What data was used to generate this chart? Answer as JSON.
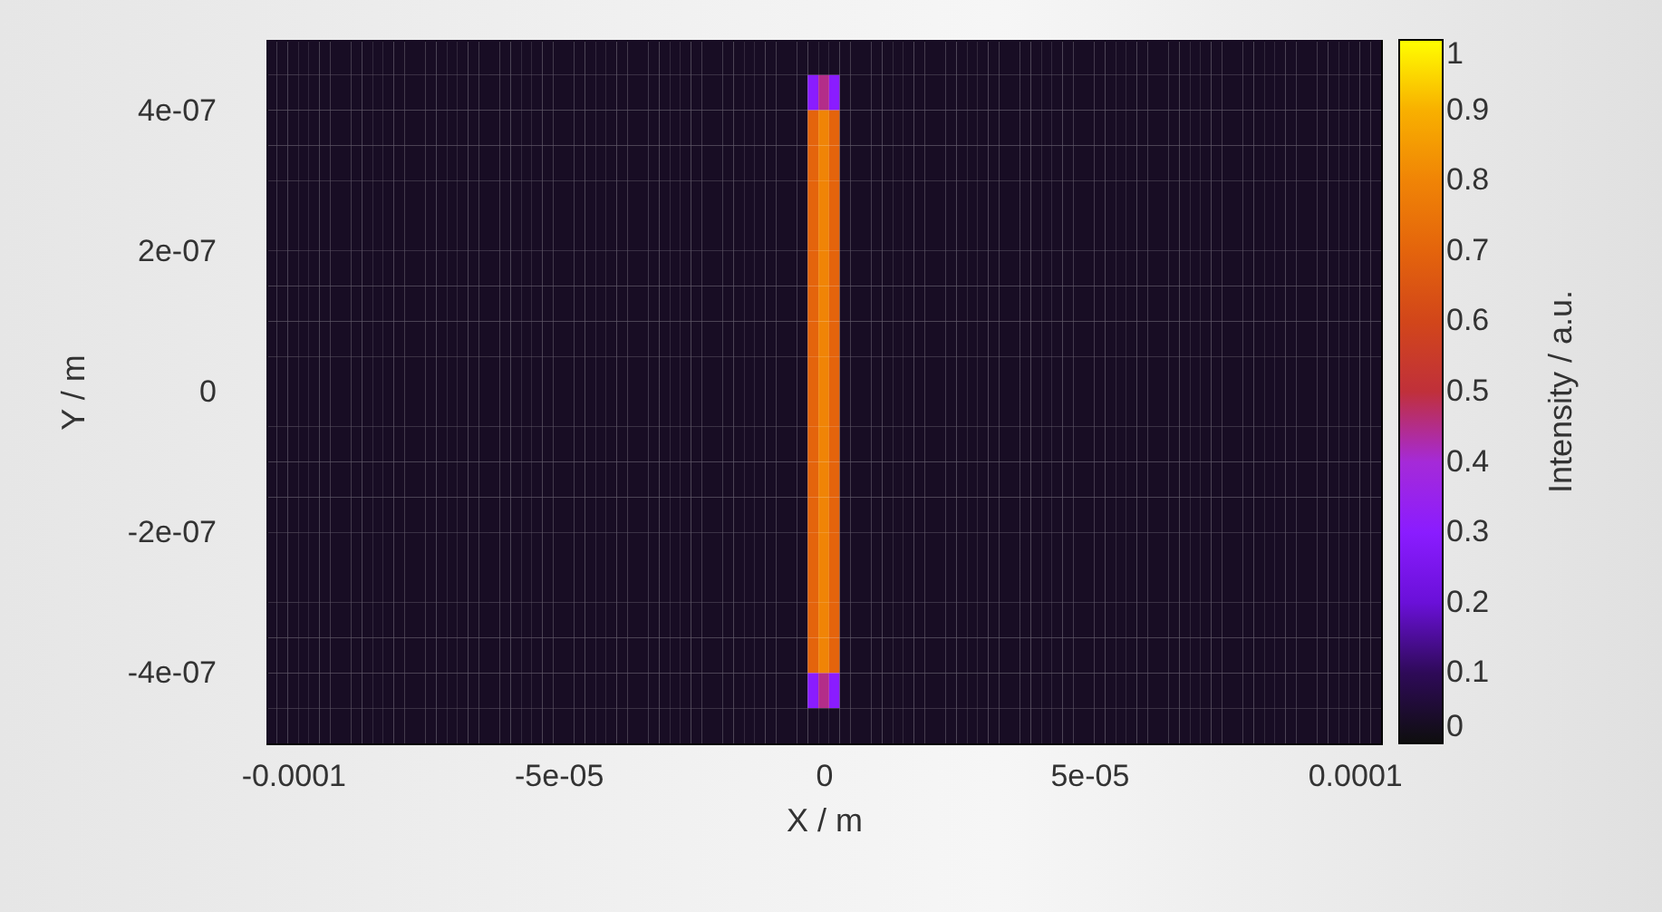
{
  "chart_data": {
    "type": "heatmap",
    "xlabel": "X / m",
    "ylabel": "Y / m",
    "clabel": "Intensity / a.u.",
    "xlim": [
      -0.000105,
      0.000105
    ],
    "ylim": [
      -5e-07,
      5e-07
    ],
    "xticks": [
      {
        "value": -0.0001,
        "label": "-0.0001"
      },
      {
        "value": -5e-05,
        "label": "-5e-05"
      },
      0,
      {
        "value": 5e-05,
        "label": "5e-05"
      },
      {
        "value": 0.0001,
        "label": "0.0001"
      }
    ],
    "yticks": [
      {
        "value": -4e-07,
        "label": "-4e-07"
      },
      {
        "value": -2e-07,
        "label": "-2e-07"
      },
      0,
      {
        "value": 2e-07,
        "label": "2e-07"
      },
      {
        "value": 4e-07,
        "label": "4e-07"
      }
    ],
    "clim": [
      0,
      1
    ],
    "cticks": [
      0,
      0.1,
      0.2,
      0.3,
      0.4,
      0.5,
      0.6,
      0.7,
      0.8,
      0.9,
      1
    ],
    "cells": [
      [
        0.03,
        0.03,
        0.03,
        0.03,
        0.03,
        0.03,
        0.03,
        0.03,
        0.03,
        0.03,
        0.03,
        0.03,
        0.03,
        0.03,
        0.03,
        0.03,
        0.03,
        0.03,
        0.03,
        0.03,
        0.03,
        0.03,
        0.03,
        0.03,
        0.03,
        0.03,
        0.03,
        0.03,
        0.03,
        0.03,
        0.03,
        0.03,
        0.03,
        0.03,
        0.03,
        0.03,
        0.03,
        0.03,
        0.03,
        0.03,
        0.03,
        0.03,
        0.03,
        0.03,
        0.03,
        0.03,
        0.03,
        0.03,
        0.03,
        0.03,
        0.03,
        0.03,
        0.03,
        0.03,
        0.03,
        0.03,
        0.03,
        0.03,
        0.03,
        0.03,
        0.03,
        0.03,
        0.03,
        0.03,
        0.03,
        0.03,
        0.03,
        0.03,
        0.03,
        0.03,
        0.03,
        0.03,
        0.03,
        0.03,
        0.03,
        0.03,
        0.03,
        0.03,
        0.03,
        0.03,
        0.03,
        0.03,
        0.03,
        0.03,
        0.03,
        0.03,
        0.03,
        0.03,
        0.03,
        0.03,
        0.03,
        0.03,
        0.03,
        0.03,
        0.03,
        0.03,
        0.03,
        0.03,
        0.03,
        0.03,
        0.03,
        0.03,
        0.03,
        0.03,
        0.03
      ],
      [
        0.03,
        0.03,
        0.03,
        0.03,
        0.03,
        0.03,
        0.03,
        0.03,
        0.03,
        0.03,
        0.03,
        0.03,
        0.03,
        0.03,
        0.03,
        0.03,
        0.03,
        0.03,
        0.03,
        0.03,
        0.03,
        0.03,
        0.03,
        0.03,
        0.03,
        0.03,
        0.03,
        0.03,
        0.03,
        0.03,
        0.03,
        0.03,
        0.03,
        0.03,
        0.03,
        0.03,
        0.03,
        0.03,
        0.03,
        0.03,
        0.03,
        0.03,
        0.03,
        0.03,
        0.03,
        0.03,
        0.03,
        0.03,
        0.03,
        0.03,
        0.03,
        0.3,
        0.45,
        0.3,
        0.03,
        0.03,
        0.03,
        0.03,
        0.03,
        0.03,
        0.03,
        0.03,
        0.03,
        0.03,
        0.03,
        0.03,
        0.03,
        0.03,
        0.03,
        0.03,
        0.03,
        0.03,
        0.03,
        0.03,
        0.03,
        0.03,
        0.03,
        0.03,
        0.03,
        0.03,
        0.03,
        0.03,
        0.03,
        0.03,
        0.03,
        0.03,
        0.03,
        0.03,
        0.03,
        0.03,
        0.03,
        0.03,
        0.03,
        0.03,
        0.03,
        0.03,
        0.03,
        0.03,
        0.03,
        0.03,
        0.03,
        0.03,
        0.03,
        0.03,
        0.03
      ],
      [
        0.03,
        0.03,
        0.03,
        0.03,
        0.03,
        0.03,
        0.03,
        0.03,
        0.03,
        0.03,
        0.03,
        0.03,
        0.03,
        0.03,
        0.03,
        0.03,
        0.03,
        0.03,
        0.03,
        0.03,
        0.03,
        0.03,
        0.03,
        0.03,
        0.03,
        0.03,
        0.03,
        0.03,
        0.03,
        0.03,
        0.03,
        0.03,
        0.03,
        0.03,
        0.03,
        0.03,
        0.03,
        0.03,
        0.03,
        0.03,
        0.03,
        0.03,
        0.03,
        0.03,
        0.03,
        0.03,
        0.03,
        0.03,
        0.03,
        0.03,
        0.03,
        0.7,
        0.8,
        0.7,
        0.03,
        0.03,
        0.03,
        0.03,
        0.03,
        0.03,
        0.03,
        0.03,
        0.03,
        0.03,
        0.03,
        0.03,
        0.03,
        0.03,
        0.03,
        0.03,
        0.03,
        0.03,
        0.03,
        0.03,
        0.03,
        0.03,
        0.03,
        0.03,
        0.03,
        0.03,
        0.03,
        0.03,
        0.03,
        0.03,
        0.03,
        0.03,
        0.03,
        0.03,
        0.03,
        0.03,
        0.03,
        0.03,
        0.03,
        0.03,
        0.03,
        0.03,
        0.03,
        0.03,
        0.03,
        0.03,
        0.03,
        0.03,
        0.03,
        0.03,
        0.03
      ],
      [
        0.03,
        0.03,
        0.03,
        0.03,
        0.03,
        0.03,
        0.03,
        0.03,
        0.03,
        0.03,
        0.03,
        0.03,
        0.03,
        0.03,
        0.03,
        0.03,
        0.03,
        0.03,
        0.03,
        0.03,
        0.03,
        0.03,
        0.03,
        0.03,
        0.03,
        0.03,
        0.03,
        0.03,
        0.03,
        0.03,
        0.03,
        0.03,
        0.03,
        0.03,
        0.03,
        0.03,
        0.03,
        0.03,
        0.03,
        0.03,
        0.03,
        0.03,
        0.03,
        0.03,
        0.03,
        0.03,
        0.03,
        0.03,
        0.03,
        0.03,
        0.03,
        0.7,
        0.8,
        0.7,
        0.03,
        0.03,
        0.03,
        0.03,
        0.03,
        0.03,
        0.03,
        0.03,
        0.03,
        0.03,
        0.03,
        0.03,
        0.03,
        0.03,
        0.03,
        0.03,
        0.03,
        0.03,
        0.03,
        0.03,
        0.03,
        0.03,
        0.03,
        0.03,
        0.03,
        0.03,
        0.03,
        0.03,
        0.03,
        0.03,
        0.03,
        0.03,
        0.03,
        0.03,
        0.03,
        0.03,
        0.03,
        0.03,
        0.03,
        0.03,
        0.03,
        0.03,
        0.03,
        0.03,
        0.03,
        0.03,
        0.03,
        0.03,
        0.03,
        0.03,
        0.03
      ],
      [
        0.03,
        0.03,
        0.03,
        0.03,
        0.03,
        0.03,
        0.03,
        0.03,
        0.03,
        0.03,
        0.03,
        0.03,
        0.03,
        0.03,
        0.03,
        0.03,
        0.03,
        0.03,
        0.03,
        0.03,
        0.03,
        0.03,
        0.03,
        0.03,
        0.03,
        0.03,
        0.03,
        0.03,
        0.03,
        0.03,
        0.03,
        0.03,
        0.03,
        0.03,
        0.03,
        0.03,
        0.03,
        0.03,
        0.03,
        0.03,
        0.03,
        0.03,
        0.03,
        0.03,
        0.03,
        0.03,
        0.03,
        0.03,
        0.03,
        0.03,
        0.03,
        0.7,
        0.8,
        0.7,
        0.03,
        0.03,
        0.03,
        0.03,
        0.03,
        0.03,
        0.03,
        0.03,
        0.03,
        0.03,
        0.03,
        0.03,
        0.03,
        0.03,
        0.03,
        0.03,
        0.03,
        0.03,
        0.03,
        0.03,
        0.03,
        0.03,
        0.03,
        0.03,
        0.03,
        0.03,
        0.03,
        0.03,
        0.03,
        0.03,
        0.03,
        0.03,
        0.03,
        0.03,
        0.03,
        0.03,
        0.03,
        0.03,
        0.03,
        0.03,
        0.03,
        0.03,
        0.03,
        0.03,
        0.03,
        0.03,
        0.03,
        0.03,
        0.03,
        0.03,
        0.03
      ],
      [
        0.03,
        0.03,
        0.03,
        0.03,
        0.03,
        0.03,
        0.03,
        0.03,
        0.03,
        0.03,
        0.03,
        0.03,
        0.03,
        0.03,
        0.03,
        0.03,
        0.03,
        0.03,
        0.03,
        0.03,
        0.03,
        0.03,
        0.03,
        0.03,
        0.03,
        0.03,
        0.03,
        0.03,
        0.03,
        0.03,
        0.03,
        0.03,
        0.03,
        0.03,
        0.03,
        0.03,
        0.03,
        0.03,
        0.03,
        0.03,
        0.03,
        0.03,
        0.03,
        0.03,
        0.03,
        0.03,
        0.03,
        0.03,
        0.03,
        0.03,
        0.03,
        0.7,
        0.8,
        0.7,
        0.03,
        0.03,
        0.03,
        0.03,
        0.03,
        0.03,
        0.03,
        0.03,
        0.03,
        0.03,
        0.03,
        0.03,
        0.03,
        0.03,
        0.03,
        0.03,
        0.03,
        0.03,
        0.03,
        0.03,
        0.03,
        0.03,
        0.03,
        0.03,
        0.03,
        0.03,
        0.03,
        0.03,
        0.03,
        0.03,
        0.03,
        0.03,
        0.03,
        0.03,
        0.03,
        0.03,
        0.03,
        0.03,
        0.03,
        0.03,
        0.03,
        0.03,
        0.03,
        0.03,
        0.03,
        0.03,
        0.03,
        0.03,
        0.03,
        0.03,
        0.03
      ],
      [
        0.03,
        0.03,
        0.03,
        0.03,
        0.03,
        0.03,
        0.03,
        0.03,
        0.03,
        0.03,
        0.03,
        0.03,
        0.03,
        0.03,
        0.03,
        0.03,
        0.03,
        0.03,
        0.03,
        0.03,
        0.03,
        0.03,
        0.03,
        0.03,
        0.03,
        0.03,
        0.03,
        0.03,
        0.03,
        0.03,
        0.03,
        0.03,
        0.03,
        0.03,
        0.03,
        0.03,
        0.03,
        0.03,
        0.03,
        0.03,
        0.03,
        0.03,
        0.03,
        0.03,
        0.03,
        0.03,
        0.03,
        0.03,
        0.03,
        0.03,
        0.03,
        0.7,
        0.8,
        0.7,
        0.03,
        0.03,
        0.03,
        0.03,
        0.03,
        0.03,
        0.03,
        0.03,
        0.03,
        0.03,
        0.03,
        0.03,
        0.03,
        0.03,
        0.03,
        0.03,
        0.03,
        0.03,
        0.03,
        0.03,
        0.03,
        0.03,
        0.03,
        0.03,
        0.03,
        0.03,
        0.03,
        0.03,
        0.03,
        0.03,
        0.03,
        0.03,
        0.03,
        0.03,
        0.03,
        0.03,
        0.03,
        0.03,
        0.03,
        0.03,
        0.03,
        0.03,
        0.03,
        0.03,
        0.03,
        0.03,
        0.03,
        0.03,
        0.03,
        0.03,
        0.03
      ],
      [
        0.03,
        0.03,
        0.03,
        0.03,
        0.03,
        0.03,
        0.03,
        0.03,
        0.03,
        0.03,
        0.03,
        0.03,
        0.03,
        0.03,
        0.03,
        0.03,
        0.03,
        0.03,
        0.03,
        0.03,
        0.03,
        0.03,
        0.03,
        0.03,
        0.03,
        0.03,
        0.03,
        0.03,
        0.03,
        0.03,
        0.03,
        0.03,
        0.03,
        0.03,
        0.03,
        0.03,
        0.03,
        0.03,
        0.03,
        0.03,
        0.03,
        0.03,
        0.03,
        0.03,
        0.03,
        0.03,
        0.03,
        0.03,
        0.03,
        0.03,
        0.03,
        0.7,
        0.8,
        0.7,
        0.03,
        0.03,
        0.03,
        0.03,
        0.03,
        0.03,
        0.03,
        0.03,
        0.03,
        0.03,
        0.03,
        0.03,
        0.03,
        0.03,
        0.03,
        0.03,
        0.03,
        0.03,
        0.03,
        0.03,
        0.03,
        0.03,
        0.03,
        0.03,
        0.03,
        0.03,
        0.03,
        0.03,
        0.03,
        0.03,
        0.03,
        0.03,
        0.03,
        0.03,
        0.03,
        0.03,
        0.03,
        0.03,
        0.03,
        0.03,
        0.03,
        0.03,
        0.03,
        0.03,
        0.03,
        0.03,
        0.03,
        0.03,
        0.03,
        0.03,
        0.03
      ],
      [
        0.03,
        0.03,
        0.03,
        0.03,
        0.03,
        0.03,
        0.03,
        0.03,
        0.03,
        0.03,
        0.03,
        0.03,
        0.03,
        0.03,
        0.03,
        0.03,
        0.03,
        0.03,
        0.03,
        0.03,
        0.03,
        0.03,
        0.03,
        0.03,
        0.03,
        0.03,
        0.03,
        0.03,
        0.03,
        0.03,
        0.03,
        0.03,
        0.03,
        0.03,
        0.03,
        0.03,
        0.03,
        0.03,
        0.03,
        0.03,
        0.03,
        0.03,
        0.03,
        0.03,
        0.03,
        0.03,
        0.03,
        0.03,
        0.03,
        0.03,
        0.03,
        0.7,
        0.8,
        0.7,
        0.03,
        0.03,
        0.03,
        0.03,
        0.03,
        0.03,
        0.03,
        0.03,
        0.03,
        0.03,
        0.03,
        0.03,
        0.03,
        0.03,
        0.03,
        0.03,
        0.03,
        0.03,
        0.03,
        0.03,
        0.03,
        0.03,
        0.03,
        0.03,
        0.03,
        0.03,
        0.03,
        0.03,
        0.03,
        0.03,
        0.03,
        0.03,
        0.03,
        0.03,
        0.03,
        0.03,
        0.03,
        0.03,
        0.03,
        0.03,
        0.03,
        0.03,
        0.03,
        0.03,
        0.03,
        0.03,
        0.03,
        0.03,
        0.03,
        0.03,
        0.03
      ],
      [
        0.03,
        0.03,
        0.03,
        0.03,
        0.03,
        0.03,
        0.03,
        0.03,
        0.03,
        0.03,
        0.03,
        0.03,
        0.03,
        0.03,
        0.03,
        0.03,
        0.03,
        0.03,
        0.03,
        0.03,
        0.03,
        0.03,
        0.03,
        0.03,
        0.03,
        0.03,
        0.03,
        0.03,
        0.03,
        0.03,
        0.03,
        0.03,
        0.03,
        0.03,
        0.03,
        0.03,
        0.03,
        0.03,
        0.03,
        0.03,
        0.03,
        0.03,
        0.03,
        0.03,
        0.03,
        0.03,
        0.03,
        0.03,
        0.03,
        0.03,
        0.03,
        0.7,
        0.8,
        0.7,
        0.03,
        0.03,
        0.03,
        0.03,
        0.03,
        0.03,
        0.03,
        0.03,
        0.03,
        0.03,
        0.03,
        0.03,
        0.03,
        0.03,
        0.03,
        0.03,
        0.03,
        0.03,
        0.03,
        0.03,
        0.03,
        0.03,
        0.03,
        0.03,
        0.03,
        0.03,
        0.03,
        0.03,
        0.03,
        0.03,
        0.03,
        0.03,
        0.03,
        0.03,
        0.03,
        0.03,
        0.03,
        0.03,
        0.03,
        0.03,
        0.03,
        0.03,
        0.03,
        0.03,
        0.03,
        0.03,
        0.03,
        0.03,
        0.03,
        0.03,
        0.03
      ],
      [
        0.03,
        0.03,
        0.03,
        0.03,
        0.03,
        0.03,
        0.03,
        0.03,
        0.03,
        0.03,
        0.03,
        0.03,
        0.03,
        0.03,
        0.03,
        0.03,
        0.03,
        0.03,
        0.03,
        0.03,
        0.03,
        0.03,
        0.03,
        0.03,
        0.03,
        0.03,
        0.03,
        0.03,
        0.03,
        0.03,
        0.03,
        0.03,
        0.03,
        0.03,
        0.03,
        0.03,
        0.03,
        0.03,
        0.03,
        0.03,
        0.03,
        0.03,
        0.03,
        0.03,
        0.03,
        0.03,
        0.03,
        0.03,
        0.03,
        0.03,
        0.03,
        0.7,
        0.8,
        0.7,
        0.03,
        0.03,
        0.03,
        0.03,
        0.03,
        0.03,
        0.03,
        0.03,
        0.03,
        0.03,
        0.03,
        0.03,
        0.03,
        0.03,
        0.03,
        0.03,
        0.03,
        0.03,
        0.03,
        0.03,
        0.03,
        0.03,
        0.03,
        0.03,
        0.03,
        0.03,
        0.03,
        0.03,
        0.03,
        0.03,
        0.03,
        0.03,
        0.03,
        0.03,
        0.03,
        0.03,
        0.03,
        0.03,
        0.03,
        0.03,
        0.03,
        0.03,
        0.03,
        0.03,
        0.03,
        0.03,
        0.03,
        0.03,
        0.03,
        0.03,
        0.03
      ],
      [
        0.03,
        0.03,
        0.03,
        0.03,
        0.03,
        0.03,
        0.03,
        0.03,
        0.03,
        0.03,
        0.03,
        0.03,
        0.03,
        0.03,
        0.03,
        0.03,
        0.03,
        0.03,
        0.03,
        0.03,
        0.03,
        0.03,
        0.03,
        0.03,
        0.03,
        0.03,
        0.03,
        0.03,
        0.03,
        0.03,
        0.03,
        0.03,
        0.03,
        0.03,
        0.03,
        0.03,
        0.03,
        0.03,
        0.03,
        0.03,
        0.03,
        0.03,
        0.03,
        0.03,
        0.03,
        0.03,
        0.03,
        0.03,
        0.03,
        0.03,
        0.03,
        0.7,
        0.8,
        0.7,
        0.03,
        0.03,
        0.03,
        0.03,
        0.03,
        0.03,
        0.03,
        0.03,
        0.03,
        0.03,
        0.03,
        0.03,
        0.03,
        0.03,
        0.03,
        0.03,
        0.03,
        0.03,
        0.03,
        0.03,
        0.03,
        0.03,
        0.03,
        0.03,
        0.03,
        0.03,
        0.03,
        0.03,
        0.03,
        0.03,
        0.03,
        0.03,
        0.03,
        0.03,
        0.03,
        0.03,
        0.03,
        0.03,
        0.03,
        0.03,
        0.03,
        0.03,
        0.03,
        0.03,
        0.03,
        0.03,
        0.03,
        0.03,
        0.03,
        0.03,
        0.03
      ],
      [
        0.03,
        0.03,
        0.03,
        0.03,
        0.03,
        0.03,
        0.03,
        0.03,
        0.03,
        0.03,
        0.03,
        0.03,
        0.03,
        0.03,
        0.03,
        0.03,
        0.03,
        0.03,
        0.03,
        0.03,
        0.03,
        0.03,
        0.03,
        0.03,
        0.03,
        0.03,
        0.03,
        0.03,
        0.03,
        0.03,
        0.03,
        0.03,
        0.03,
        0.03,
        0.03,
        0.03,
        0.03,
        0.03,
        0.03,
        0.03,
        0.03,
        0.03,
        0.03,
        0.03,
        0.03,
        0.03,
        0.03,
        0.03,
        0.03,
        0.03,
        0.03,
        0.7,
        0.8,
        0.7,
        0.03,
        0.03,
        0.03,
        0.03,
        0.03,
        0.03,
        0.03,
        0.03,
        0.03,
        0.03,
        0.03,
        0.03,
        0.03,
        0.03,
        0.03,
        0.03,
        0.03,
        0.03,
        0.03,
        0.03,
        0.03,
        0.03,
        0.03,
        0.03,
        0.03,
        0.03,
        0.03,
        0.03,
        0.03,
        0.03,
        0.03,
        0.03,
        0.03,
        0.03,
        0.03,
        0.03,
        0.03,
        0.03,
        0.03,
        0.03,
        0.03,
        0.03,
        0.03,
        0.03,
        0.03,
        0.03,
        0.03,
        0.03,
        0.03,
        0.03,
        0.03
      ],
      [
        0.03,
        0.03,
        0.03,
        0.03,
        0.03,
        0.03,
        0.03,
        0.03,
        0.03,
        0.03,
        0.03,
        0.03,
        0.03,
        0.03,
        0.03,
        0.03,
        0.03,
        0.03,
        0.03,
        0.03,
        0.03,
        0.03,
        0.03,
        0.03,
        0.03,
        0.03,
        0.03,
        0.03,
        0.03,
        0.03,
        0.03,
        0.03,
        0.03,
        0.03,
        0.03,
        0.03,
        0.03,
        0.03,
        0.03,
        0.03,
        0.03,
        0.03,
        0.03,
        0.03,
        0.03,
        0.03,
        0.03,
        0.03,
        0.03,
        0.03,
        0.03,
        0.7,
        0.8,
        0.7,
        0.03,
        0.03,
        0.03,
        0.03,
        0.03,
        0.03,
        0.03,
        0.03,
        0.03,
        0.03,
        0.03,
        0.03,
        0.03,
        0.03,
        0.03,
        0.03,
        0.03,
        0.03,
        0.03,
        0.03,
        0.03,
        0.03,
        0.03,
        0.03,
        0.03,
        0.03,
        0.03,
        0.03,
        0.03,
        0.03,
        0.03,
        0.03,
        0.03,
        0.03,
        0.03,
        0.03,
        0.03,
        0.03,
        0.03,
        0.03,
        0.03,
        0.03,
        0.03,
        0.03,
        0.03,
        0.03,
        0.03,
        0.03,
        0.03,
        0.03,
        0.03
      ],
      [
        0.03,
        0.03,
        0.03,
        0.03,
        0.03,
        0.03,
        0.03,
        0.03,
        0.03,
        0.03,
        0.03,
        0.03,
        0.03,
        0.03,
        0.03,
        0.03,
        0.03,
        0.03,
        0.03,
        0.03,
        0.03,
        0.03,
        0.03,
        0.03,
        0.03,
        0.03,
        0.03,
        0.03,
        0.03,
        0.03,
        0.03,
        0.03,
        0.03,
        0.03,
        0.03,
        0.03,
        0.03,
        0.03,
        0.03,
        0.03,
        0.03,
        0.03,
        0.03,
        0.03,
        0.03,
        0.03,
        0.03,
        0.03,
        0.03,
        0.03,
        0.03,
        0.7,
        0.8,
        0.7,
        0.03,
        0.03,
        0.03,
        0.03,
        0.03,
        0.03,
        0.03,
        0.03,
        0.03,
        0.03,
        0.03,
        0.03,
        0.03,
        0.03,
        0.03,
        0.03,
        0.03,
        0.03,
        0.03,
        0.03,
        0.03,
        0.03,
        0.03,
        0.03,
        0.03,
        0.03,
        0.03,
        0.03,
        0.03,
        0.03,
        0.03,
        0.03,
        0.03,
        0.03,
        0.03,
        0.03,
        0.03,
        0.03,
        0.03,
        0.03,
        0.03,
        0.03,
        0.03,
        0.03,
        0.03,
        0.03,
        0.03,
        0.03,
        0.03,
        0.03,
        0.03
      ],
      [
        0.03,
        0.03,
        0.03,
        0.03,
        0.03,
        0.03,
        0.03,
        0.03,
        0.03,
        0.03,
        0.03,
        0.03,
        0.03,
        0.03,
        0.03,
        0.03,
        0.03,
        0.03,
        0.03,
        0.03,
        0.03,
        0.03,
        0.03,
        0.03,
        0.03,
        0.03,
        0.03,
        0.03,
        0.03,
        0.03,
        0.03,
        0.03,
        0.03,
        0.03,
        0.03,
        0.03,
        0.03,
        0.03,
        0.03,
        0.03,
        0.03,
        0.03,
        0.03,
        0.03,
        0.03,
        0.03,
        0.03,
        0.03,
        0.03,
        0.03,
        0.03,
        0.7,
        0.8,
        0.7,
        0.03,
        0.03,
        0.03,
        0.03,
        0.03,
        0.03,
        0.03,
        0.03,
        0.03,
        0.03,
        0.03,
        0.03,
        0.03,
        0.03,
        0.03,
        0.03,
        0.03,
        0.03,
        0.03,
        0.03,
        0.03,
        0.03,
        0.03,
        0.03,
        0.03,
        0.03,
        0.03,
        0.03,
        0.03,
        0.03,
        0.03,
        0.03,
        0.03,
        0.03,
        0.03,
        0.03,
        0.03,
        0.03,
        0.03,
        0.03,
        0.03,
        0.03,
        0.03,
        0.03,
        0.03,
        0.03,
        0.03,
        0.03,
        0.03,
        0.03,
        0.03
      ],
      [
        0.03,
        0.03,
        0.03,
        0.03,
        0.03,
        0.03,
        0.03,
        0.03,
        0.03,
        0.03,
        0.03,
        0.03,
        0.03,
        0.03,
        0.03,
        0.03,
        0.03,
        0.03,
        0.03,
        0.03,
        0.03,
        0.03,
        0.03,
        0.03,
        0.03,
        0.03,
        0.03,
        0.03,
        0.03,
        0.03,
        0.03,
        0.03,
        0.03,
        0.03,
        0.03,
        0.03,
        0.03,
        0.03,
        0.03,
        0.03,
        0.03,
        0.03,
        0.03,
        0.03,
        0.03,
        0.03,
        0.03,
        0.03,
        0.03,
        0.03,
        0.03,
        0.7,
        0.8,
        0.7,
        0.03,
        0.03,
        0.03,
        0.03,
        0.03,
        0.03,
        0.03,
        0.03,
        0.03,
        0.03,
        0.03,
        0.03,
        0.03,
        0.03,
        0.03,
        0.03,
        0.03,
        0.03,
        0.03,
        0.03,
        0.03,
        0.03,
        0.03,
        0.03,
        0.03,
        0.03,
        0.03,
        0.03,
        0.03,
        0.03,
        0.03,
        0.03,
        0.03,
        0.03,
        0.03,
        0.03,
        0.03,
        0.03,
        0.03,
        0.03,
        0.03,
        0.03,
        0.03,
        0.03,
        0.03,
        0.03,
        0.03,
        0.03,
        0.03,
        0.03,
        0.03
      ],
      [
        0.03,
        0.03,
        0.03,
        0.03,
        0.03,
        0.03,
        0.03,
        0.03,
        0.03,
        0.03,
        0.03,
        0.03,
        0.03,
        0.03,
        0.03,
        0.03,
        0.03,
        0.03,
        0.03,
        0.03,
        0.03,
        0.03,
        0.03,
        0.03,
        0.03,
        0.03,
        0.03,
        0.03,
        0.03,
        0.03,
        0.03,
        0.03,
        0.03,
        0.03,
        0.03,
        0.03,
        0.03,
        0.03,
        0.03,
        0.03,
        0.03,
        0.03,
        0.03,
        0.03,
        0.03,
        0.03,
        0.03,
        0.03,
        0.03,
        0.03,
        0.03,
        0.7,
        0.8,
        0.7,
        0.03,
        0.03,
        0.03,
        0.03,
        0.03,
        0.03,
        0.03,
        0.03,
        0.03,
        0.03,
        0.03,
        0.03,
        0.03,
        0.03,
        0.03,
        0.03,
        0.03,
        0.03,
        0.03,
        0.03,
        0.03,
        0.03,
        0.03,
        0.03,
        0.03,
        0.03,
        0.03,
        0.03,
        0.03,
        0.03,
        0.03,
        0.03,
        0.03,
        0.03,
        0.03,
        0.03,
        0.03,
        0.03,
        0.03,
        0.03,
        0.03,
        0.03,
        0.03,
        0.03,
        0.03,
        0.03,
        0.03,
        0.03,
        0.03,
        0.03,
        0.03
      ],
      [
        0.03,
        0.03,
        0.03,
        0.03,
        0.03,
        0.03,
        0.03,
        0.03,
        0.03,
        0.03,
        0.03,
        0.03,
        0.03,
        0.03,
        0.03,
        0.03,
        0.03,
        0.03,
        0.03,
        0.03,
        0.03,
        0.03,
        0.03,
        0.03,
        0.03,
        0.03,
        0.03,
        0.03,
        0.03,
        0.03,
        0.03,
        0.03,
        0.03,
        0.03,
        0.03,
        0.03,
        0.03,
        0.03,
        0.03,
        0.03,
        0.03,
        0.03,
        0.03,
        0.03,
        0.03,
        0.03,
        0.03,
        0.03,
        0.03,
        0.03,
        0.03,
        0.3,
        0.45,
        0.3,
        0.03,
        0.03,
        0.03,
        0.03,
        0.03,
        0.03,
        0.03,
        0.03,
        0.03,
        0.03,
        0.03,
        0.03,
        0.03,
        0.03,
        0.03,
        0.03,
        0.03,
        0.03,
        0.03,
        0.03,
        0.03,
        0.03,
        0.03,
        0.03,
        0.03,
        0.03,
        0.03,
        0.03,
        0.03,
        0.03,
        0.03,
        0.03,
        0.03,
        0.03,
        0.03,
        0.03,
        0.03,
        0.03,
        0.03,
        0.03,
        0.03,
        0.03,
        0.03,
        0.03,
        0.03,
        0.03,
        0.03,
        0.03,
        0.03,
        0.03,
        0.03
      ],
      [
        0.03,
        0.03,
        0.03,
        0.03,
        0.03,
        0.03,
        0.03,
        0.03,
        0.03,
        0.03,
        0.03,
        0.03,
        0.03,
        0.03,
        0.03,
        0.03,
        0.03,
        0.03,
        0.03,
        0.03,
        0.03,
        0.03,
        0.03,
        0.03,
        0.03,
        0.03,
        0.03,
        0.03,
        0.03,
        0.03,
        0.03,
        0.03,
        0.03,
        0.03,
        0.03,
        0.03,
        0.03,
        0.03,
        0.03,
        0.03,
        0.03,
        0.03,
        0.03,
        0.03,
        0.03,
        0.03,
        0.03,
        0.03,
        0.03,
        0.03,
        0.03,
        0.03,
        0.03,
        0.03,
        0.03,
        0.03,
        0.03,
        0.03,
        0.03,
        0.03,
        0.03,
        0.03,
        0.03,
        0.03,
        0.03,
        0.03,
        0.03,
        0.03,
        0.03,
        0.03,
        0.03,
        0.03,
        0.03,
        0.03,
        0.03,
        0.03,
        0.03,
        0.03,
        0.03,
        0.03,
        0.03,
        0.03,
        0.03,
        0.03,
        0.03,
        0.03,
        0.03,
        0.03,
        0.03,
        0.03,
        0.03,
        0.03,
        0.03,
        0.03,
        0.03,
        0.03,
        0.03,
        0.03,
        0.03,
        0.03,
        0.03,
        0.03,
        0.03,
        0.03,
        0.03
      ]
    ]
  }
}
